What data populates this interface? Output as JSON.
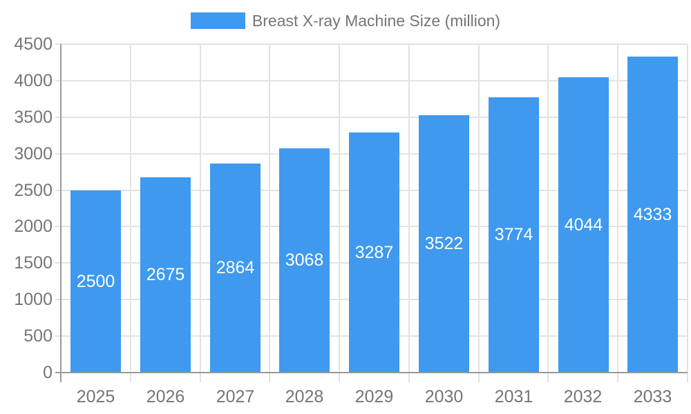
{
  "legend": {
    "label": "Breast X-ray Machine Size (million)"
  },
  "colors": {
    "bar": "#3E99EF",
    "bar_label_text": "#FFFFFF",
    "grid_line": "#E2E2E2",
    "axis_line": "#999999",
    "axis_text": "#757575",
    "background": "#FFFFFF"
  },
  "chart_data": {
    "type": "bar",
    "title": "Breast X-ray Machine Size (million)",
    "categories": [
      "2025",
      "2026",
      "2027",
      "2028",
      "2029",
      "2030",
      "2031",
      "2032",
      "2033"
    ],
    "values": [
      2500,
      2675,
      2864,
      3068,
      3287,
      3522,
      3774,
      4044,
      4333
    ],
    "series": [
      {
        "name": "Breast X-ray Machine Size (million)",
        "values": [
          2500,
          2675,
          2864,
          3068,
          3287,
          3522,
          3774,
          4044,
          4333
        ]
      }
    ],
    "xlabel": "",
    "ylabel": "",
    "ylim": [
      0,
      4500
    ],
    "yticks": [
      0,
      500,
      1000,
      1500,
      2000,
      2500,
      3000,
      3500,
      4000,
      4500
    ],
    "grid": true,
    "legend_position": "top",
    "value_label_position": "centered-inside-bar"
  }
}
